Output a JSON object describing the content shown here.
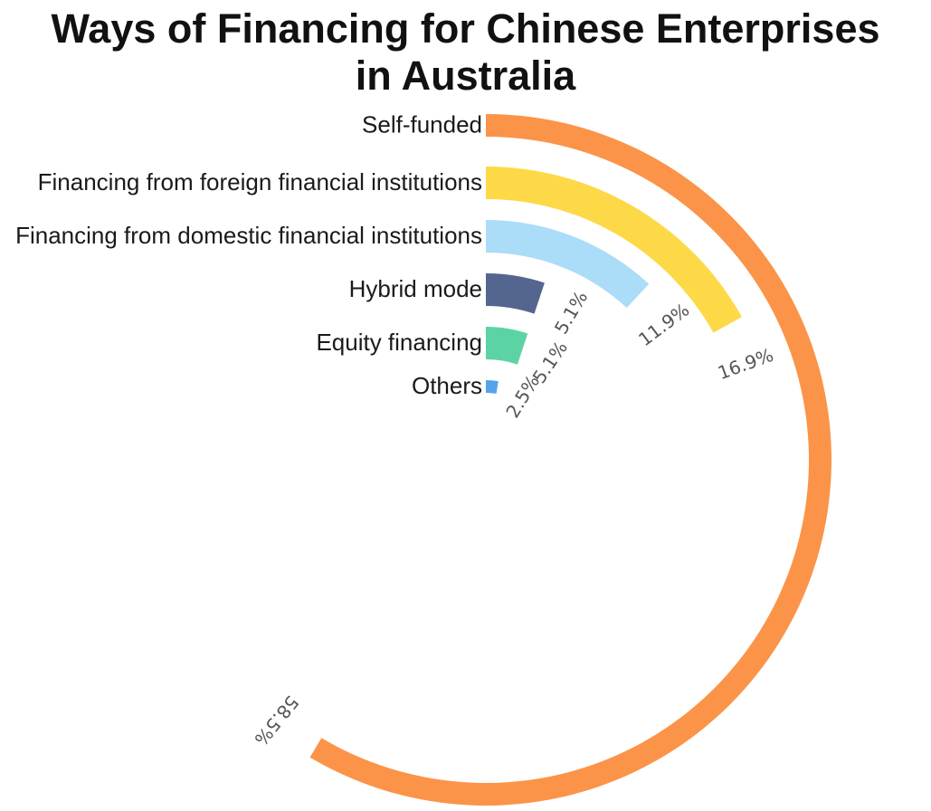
{
  "chart_data": {
    "type": "radial-bar",
    "title": "Ways of Financing for Chinese Enterprises in Australia",
    "title_lines": [
      "Ways of Financing for Chinese Enterprises",
      "in Australia"
    ],
    "categories": [
      "Self-funded",
      "Financing from foreign financial institutions",
      "Financing from domestic financial institutions",
      "Hybrid mode",
      "Equity financing",
      "Others"
    ],
    "values": [
      58.5,
      16.9,
      11.9,
      5.1,
      5.1,
      2.5
    ],
    "value_labels": [
      "58.5%",
      "16.9%",
      "11.9%",
      "5.1%",
      "5.1%",
      "2.5%"
    ],
    "max": 100,
    "unit": "%",
    "colors": [
      "#fb9449",
      "#fdd948",
      "#abdcf8",
      "#546690",
      "#5cd3a5",
      "#55a3ec"
    ]
  }
}
